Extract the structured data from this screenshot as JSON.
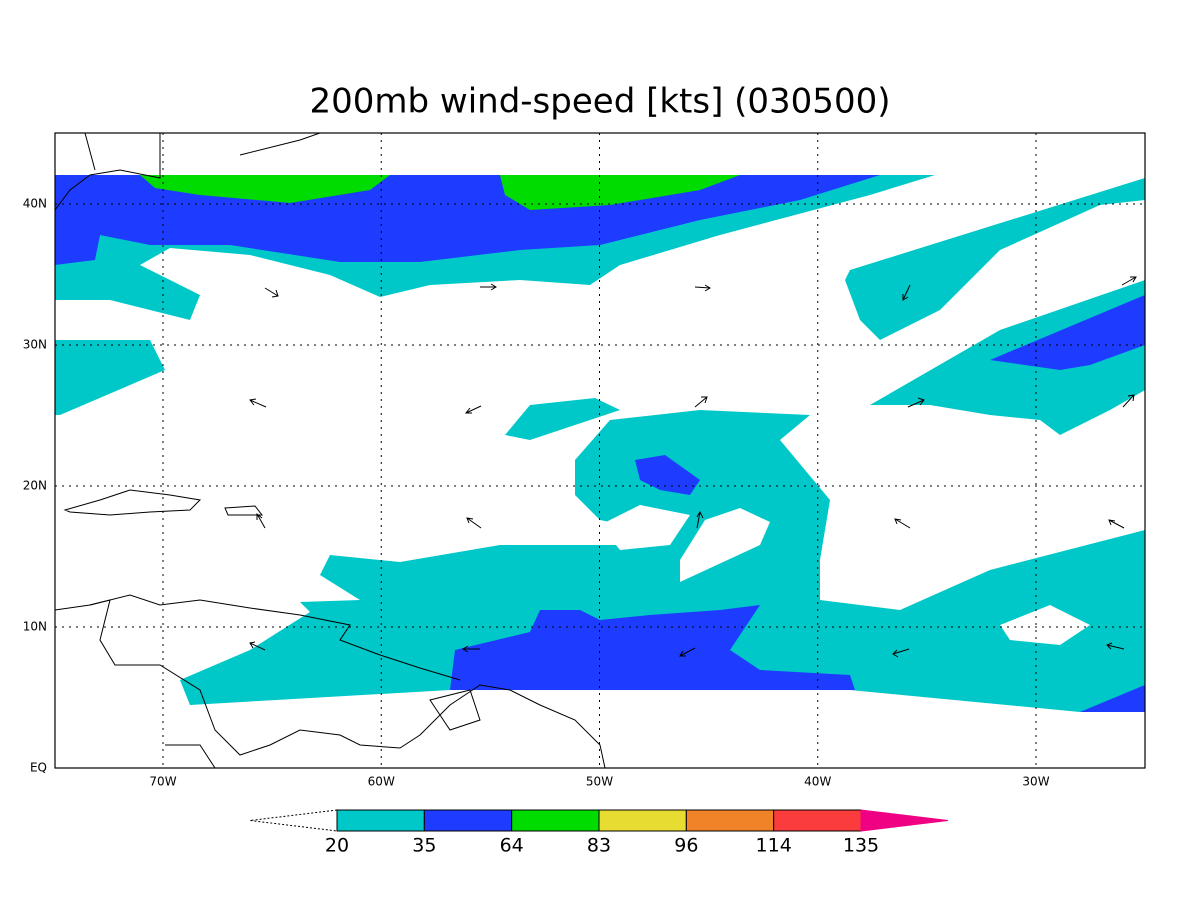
{
  "title": "200mb wind-speed [kts] (030500)",
  "lon_labels": [
    "70W",
    "60W",
    "50W",
    "40W",
    "30W"
  ],
  "lat_labels": [
    "EQ",
    "10N",
    "20N",
    "30N",
    "40N"
  ],
  "colorbar": {
    "levels": [
      20,
      35,
      64,
      83,
      96,
      114,
      135
    ],
    "colors": [
      "#ffffff",
      "#00c8c8",
      "#1e3cff",
      "#00dc00",
      "#e6dc32",
      "#f08228",
      "#fa3c3c",
      "#f00082"
    ]
  }
}
